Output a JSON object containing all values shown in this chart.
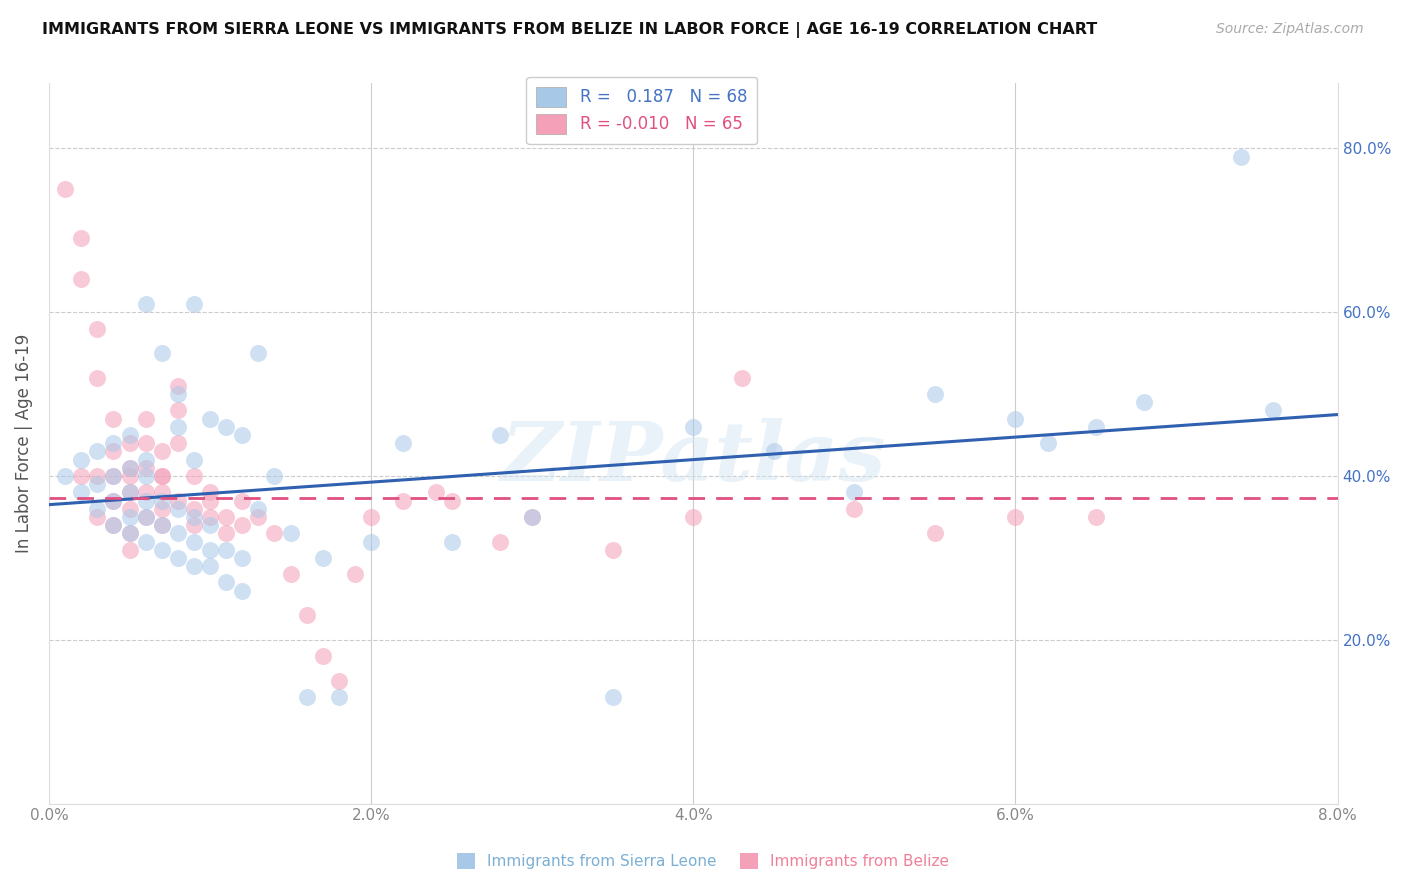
{
  "title": "IMMIGRANTS FROM SIERRA LEONE VS IMMIGRANTS FROM BELIZE IN LABOR FORCE | AGE 16-19 CORRELATION CHART",
  "source": "Source: ZipAtlas.com",
  "ylabel": "In Labor Force | Age 16-19",
  "watermark": "ZIPatlas",
  "legend_label_sl": "Immigrants from Sierra Leone",
  "legend_label_bz": "Immigrants from Belize",
  "xlim": [
    0.0,
    0.08
  ],
  "ylim": [
    0.0,
    0.88
  ],
  "xticks": [
    0.0,
    0.02,
    0.04,
    0.06,
    0.08
  ],
  "xticklabels": [
    "0.0%",
    "2.0%",
    "4.0%",
    "6.0%",
    "8.0%"
  ],
  "yticks": [
    0.0,
    0.2,
    0.4,
    0.6,
    0.8
  ],
  "yticklabels_right": [
    "",
    "20.0%",
    "40.0%",
    "60.0%",
    "80.0%"
  ],
  "sl_color": "#a8c8e8",
  "bz_color": "#f4a0b8",
  "sl_line_color": "#3060b0",
  "bz_line_color": "#e05080",
  "sl_line_y0": 0.365,
  "sl_line_y1": 0.475,
  "bz_line_y0": 0.373,
  "bz_line_y1": 0.373,
  "sl_x": [
    0.001,
    0.002,
    0.002,
    0.003,
    0.003,
    0.003,
    0.004,
    0.004,
    0.004,
    0.004,
    0.005,
    0.005,
    0.005,
    0.005,
    0.005,
    0.006,
    0.006,
    0.006,
    0.006,
    0.006,
    0.006,
    0.007,
    0.007,
    0.007,
    0.007,
    0.008,
    0.008,
    0.008,
    0.008,
    0.008,
    0.009,
    0.009,
    0.009,
    0.009,
    0.009,
    0.01,
    0.01,
    0.01,
    0.01,
    0.011,
    0.011,
    0.011,
    0.012,
    0.012,
    0.012,
    0.013,
    0.013,
    0.014,
    0.015,
    0.016,
    0.017,
    0.018,
    0.02,
    0.022,
    0.025,
    0.028,
    0.03,
    0.035,
    0.04,
    0.045,
    0.05,
    0.055,
    0.06,
    0.062,
    0.065,
    0.068,
    0.074,
    0.076
  ],
  "sl_y": [
    0.4,
    0.38,
    0.42,
    0.36,
    0.39,
    0.43,
    0.34,
    0.37,
    0.4,
    0.44,
    0.33,
    0.35,
    0.38,
    0.41,
    0.45,
    0.32,
    0.35,
    0.37,
    0.4,
    0.42,
    0.61,
    0.31,
    0.34,
    0.37,
    0.55,
    0.3,
    0.33,
    0.36,
    0.46,
    0.5,
    0.29,
    0.32,
    0.35,
    0.42,
    0.61,
    0.29,
    0.31,
    0.34,
    0.47,
    0.27,
    0.31,
    0.46,
    0.26,
    0.3,
    0.45,
    0.36,
    0.55,
    0.4,
    0.33,
    0.13,
    0.3,
    0.13,
    0.32,
    0.44,
    0.32,
    0.45,
    0.35,
    0.13,
    0.46,
    0.43,
    0.38,
    0.5,
    0.47,
    0.44,
    0.46,
    0.49,
    0.79,
    0.48
  ],
  "bz_x": [
    0.001,
    0.002,
    0.002,
    0.002,
    0.003,
    0.003,
    0.003,
    0.003,
    0.004,
    0.004,
    0.004,
    0.004,
    0.004,
    0.005,
    0.005,
    0.005,
    0.005,
    0.005,
    0.005,
    0.005,
    0.006,
    0.006,
    0.006,
    0.006,
    0.006,
    0.007,
    0.007,
    0.007,
    0.007,
    0.007,
    0.007,
    0.008,
    0.008,
    0.008,
    0.008,
    0.009,
    0.009,
    0.009,
    0.01,
    0.01,
    0.01,
    0.011,
    0.011,
    0.012,
    0.012,
    0.013,
    0.014,
    0.015,
    0.016,
    0.017,
    0.018,
    0.019,
    0.02,
    0.022,
    0.024,
    0.025,
    0.028,
    0.03,
    0.035,
    0.04,
    0.043,
    0.05,
    0.055,
    0.06,
    0.065
  ],
  "bz_y": [
    0.75,
    0.69,
    0.64,
    0.4,
    0.58,
    0.52,
    0.4,
    0.35,
    0.47,
    0.43,
    0.4,
    0.37,
    0.34,
    0.44,
    0.41,
    0.38,
    0.36,
    0.33,
    0.31,
    0.4,
    0.47,
    0.44,
    0.41,
    0.38,
    0.35,
    0.43,
    0.4,
    0.38,
    0.36,
    0.34,
    0.4,
    0.51,
    0.48,
    0.44,
    0.37,
    0.36,
    0.34,
    0.4,
    0.38,
    0.35,
    0.37,
    0.35,
    0.33,
    0.34,
    0.37,
    0.35,
    0.33,
    0.28,
    0.23,
    0.18,
    0.15,
    0.28,
    0.35,
    0.37,
    0.38,
    0.37,
    0.32,
    0.35,
    0.31,
    0.35,
    0.52,
    0.36,
    0.33,
    0.35,
    0.35
  ]
}
